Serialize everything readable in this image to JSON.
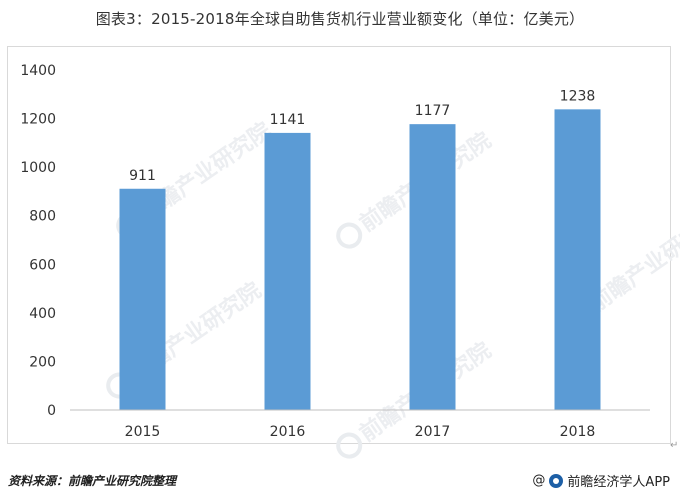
{
  "chart_data": {
    "type": "bar",
    "title": "图表3：2015-2018年全球自助售货机行业营业额变化（单位：亿美元）",
    "categories": [
      "2015",
      "2016",
      "2017",
      "2018"
    ],
    "values": [
      911,
      1141,
      1177,
      1238
    ],
    "data_labels": [
      "911",
      "1141",
      "1177",
      "1238"
    ],
    "xlabel": "",
    "ylabel": "",
    "ylim": [
      0,
      1400
    ],
    "yticks": [
      "0",
      "200",
      "400",
      "600",
      "800",
      "1000",
      "1200",
      "1400"
    ],
    "grid": false,
    "legend": "none",
    "bar_color": "#5b9bd5"
  },
  "watermark": "前瞻产业研究院",
  "footer": {
    "source": "资料来源：前瞻产业研究院整理",
    "brand_prefix": "@",
    "brand": "前瞻经济学人APP"
  },
  "return_mark": "↵"
}
